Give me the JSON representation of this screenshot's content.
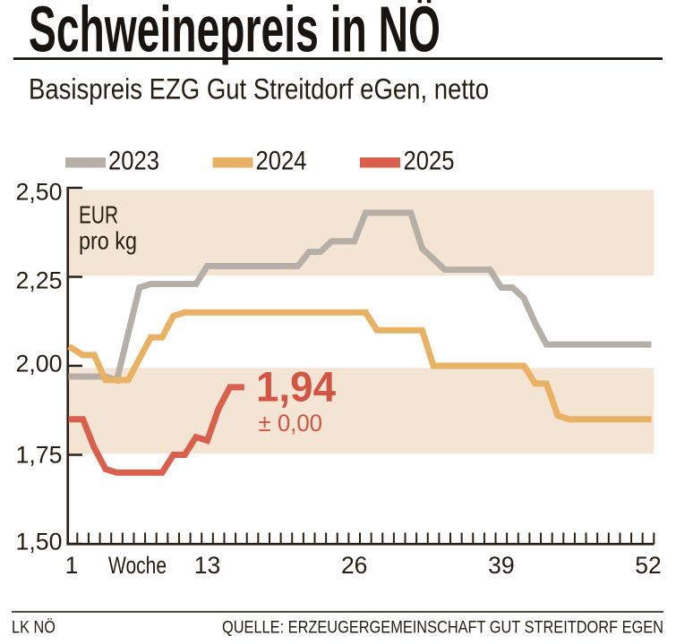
{
  "title": "Schweinepreis in NÖ",
  "subtitle": "Basispreis EZG Gut Streitdorf eGen, netto",
  "unit_label": {
    "line1": "EUR",
    "line2": "pro kg"
  },
  "legend": [
    {
      "label": "2023",
      "color": "#b6afa8"
    },
    {
      "label": "2024",
      "color": "#e8b164"
    },
    {
      "label": "2025",
      "color": "#d8604d"
    }
  ],
  "annotation": {
    "value": "1,94",
    "change": "± 0,00"
  },
  "footer": {
    "left": "LK NÖ",
    "right": "QUELLE: ERZEUGERGEMEINSCHAFT GUT STREITDORF EGEN"
  },
  "colors": {
    "band": "#f3e4d4",
    "axis": "#2a2015",
    "text": "#261d12",
    "gray_2023": "#b6afa8",
    "orange_2024": "#e8b164",
    "red_2025": "#d8604d",
    "annotation_red": "#d05643",
    "background": "#ffffff"
  },
  "chart_data": {
    "type": "line",
    "title": "Schweinepreis in NÖ",
    "subtitle": "Basispreis EZG Gut Streitdorf eGen, netto",
    "xlabel": "Woche",
    "ylabel": "EUR pro kg",
    "xlim": [
      1,
      52
    ],
    "ylim": [
      1.5,
      2.5
    ],
    "x_tick_weeks": [
      1,
      13,
      26,
      39,
      52
    ],
    "x_tick_labels": [
      "1",
      "13",
      "26",
      "39",
      "52"
    ],
    "x_minor_ticks": "every week",
    "y_tick_values": [
      2.5,
      2.25,
      2.0,
      1.75,
      1.5
    ],
    "y_tick_labels": [
      "2,50",
      "2,25",
      "2,00",
      "1,75",
      "1,50"
    ],
    "shaded_bands": [
      {
        "from": 2.25,
        "to": 2.5
      },
      {
        "from": 1.75,
        "to": 2.0
      }
    ],
    "legend_position": "top",
    "grid": false,
    "last_value_label": "1,94",
    "last_value_change": "± 0,00",
    "series": [
      {
        "name": "2023",
        "color": "#b6afa8",
        "start_week": 1,
        "values": [
          1.97,
          1.97,
          1.97,
          1.97,
          1.96,
          2.09,
          2.22,
          2.23,
          2.23,
          2.23,
          2.23,
          2.23,
          2.28,
          2.28,
          2.28,
          2.28,
          2.28,
          2.28,
          2.28,
          2.28,
          2.28,
          2.32,
          2.32,
          2.35,
          2.35,
          2.35,
          2.43,
          2.43,
          2.43,
          2.43,
          2.43,
          2.33,
          2.3,
          2.27,
          2.27,
          2.27,
          2.27,
          2.27,
          2.22,
          2.22,
          2.19,
          2.12,
          2.06,
          2.06,
          2.06,
          2.06,
          2.06,
          2.06,
          2.06,
          2.06,
          2.06,
          2.06
        ]
      },
      {
        "name": "2024",
        "color": "#e8b164",
        "start_week": 1,
        "values": [
          2.05,
          2.03,
          2.03,
          1.96,
          1.96,
          1.96,
          2.02,
          2.08,
          2.08,
          2.14,
          2.15,
          2.15,
          2.15,
          2.15,
          2.15,
          2.15,
          2.15,
          2.15,
          2.15,
          2.15,
          2.15,
          2.15,
          2.15,
          2.15,
          2.15,
          2.15,
          2.15,
          2.1,
          2.1,
          2.1,
          2.1,
          2.1,
          2.0,
          2.0,
          2.0,
          2.0,
          2.0,
          2.0,
          2.0,
          2.0,
          2.0,
          1.95,
          1.95,
          1.86,
          1.85,
          1.85,
          1.85,
          1.85,
          1.85,
          1.85,
          1.85,
          1.85
        ]
      },
      {
        "name": "2025",
        "color": "#d8604d",
        "start_week": 1,
        "values": [
          1.85,
          1.85,
          1.77,
          1.71,
          1.7,
          1.7,
          1.7,
          1.7,
          1.7,
          1.75,
          1.75,
          1.8,
          1.79,
          1.88,
          1.94,
          1.94
        ]
      }
    ]
  }
}
